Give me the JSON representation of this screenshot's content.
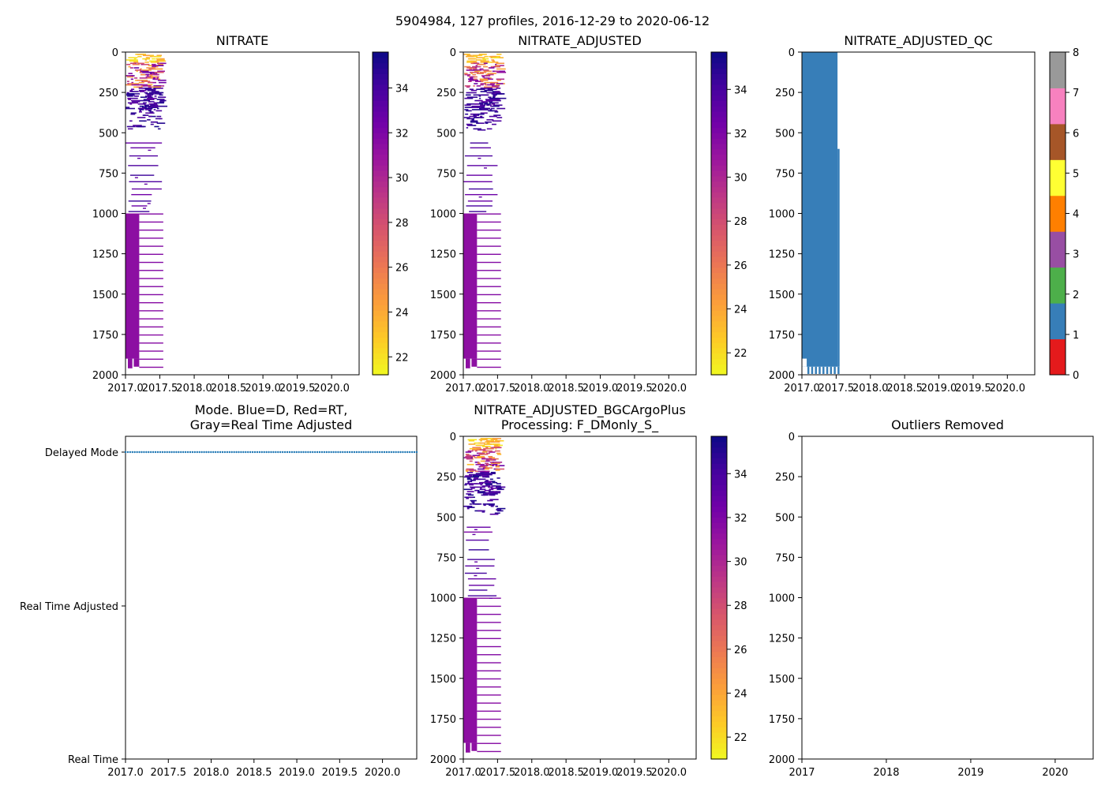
{
  "suptitle": "5904984, 127 profiles, 2016-12-29 to 2020-06-12",
  "colors": {
    "plasma": [
      "#f0f921",
      "#fdca26",
      "#fb9f3a",
      "#ed7953",
      "#d8576b",
      "#bd3786",
      "#9c179e",
      "#7201a8",
      "#46039f",
      "#0d0887"
    ],
    "qc": [
      "#e41a1c",
      "#377eb8",
      "#4daf4a",
      "#984ea3",
      "#ff7f00",
      "#ffff33",
      "#a65628",
      "#f781bf",
      "#999999"
    ],
    "mode_line": "#1f77b4"
  },
  "chart_data": [
    {
      "id": "nitrate",
      "type": "heatmap",
      "title": "NITRATE",
      "xlim": [
        2017.0,
        2020.4
      ],
      "ylim": [
        2000,
        0
      ],
      "x_ticks": [
        2017.0,
        2017.5,
        2018.0,
        2018.5,
        2019.0,
        2019.5,
        2020.0
      ],
      "x_tick_labels": [
        "2017.0",
        "2017.5",
        "2018.0",
        "2018.5",
        "2019.0",
        "2019.5",
        "2020.0"
      ],
      "y_ticks": [
        0,
        250,
        500,
        750,
        1000,
        1250,
        1500,
        1750,
        2000
      ],
      "y_tick_labels": [
        "0",
        "250",
        "500",
        "750",
        "1000",
        "1250",
        "1500",
        "1750",
        "2000"
      ],
      "data_x_range": [
        2017.0,
        2017.55
      ],
      "colorbar": {
        "clim": [
          21.2,
          35.6
        ],
        "ticks": [
          22,
          24,
          26,
          28,
          30,
          32,
          34
        ],
        "tick_labels": [
          "22",
          "24",
          "26",
          "28",
          "30",
          "32",
          "34"
        ]
      }
    },
    {
      "id": "nitrate_adjusted",
      "type": "heatmap",
      "title": "NITRATE_ADJUSTED",
      "xlim": [
        2017.0,
        2020.4
      ],
      "ylim": [
        2000,
        0
      ],
      "x_ticks": [
        2017.0,
        2017.5,
        2018.0,
        2018.5,
        2019.0,
        2019.5,
        2020.0
      ],
      "x_tick_labels": [
        "2017.0",
        "2017.5",
        "2018.0",
        "2018.5",
        "2019.0",
        "2019.5",
        "2020.0"
      ],
      "y_ticks": [
        0,
        250,
        500,
        750,
        1000,
        1250,
        1500,
        1750,
        2000
      ],
      "y_tick_labels": [
        "0",
        "250",
        "500",
        "750",
        "1000",
        "1250",
        "1500",
        "1750",
        "2000"
      ],
      "data_x_range": [
        2017.0,
        2017.55
      ],
      "colorbar": {
        "clim": [
          21.0,
          35.7
        ],
        "ticks": [
          22,
          24,
          26,
          28,
          30,
          32,
          34
        ],
        "tick_labels": [
          "22",
          "24",
          "26",
          "28",
          "30",
          "32",
          "34"
        ]
      }
    },
    {
      "id": "nitrate_adjusted_qc",
      "type": "heatmap",
      "title": "NITRATE_ADJUSTED_QC",
      "xlim": [
        2017.0,
        2020.4
      ],
      "ylim": [
        2000,
        0
      ],
      "x_ticks": [
        2017.0,
        2017.5,
        2018.0,
        2018.5,
        2019.0,
        2019.5,
        2020.0
      ],
      "x_tick_labels": [
        "2017.0",
        "2017.5",
        "2018.0",
        "2018.5",
        "2019.0",
        "2019.5",
        "2020.0"
      ],
      "y_ticks": [
        0,
        250,
        500,
        750,
        1000,
        1250,
        1500,
        1750,
        2000
      ],
      "y_tick_labels": [
        "0",
        "250",
        "500",
        "750",
        "1000",
        "1250",
        "1500",
        "1750",
        "2000"
      ],
      "qc_value_shown": 1,
      "data_x_range": [
        2017.0,
        2017.55
      ],
      "colorbar": {
        "clim": [
          0,
          8
        ],
        "ticks": [
          0,
          1,
          2,
          3,
          4,
          5,
          6,
          7,
          8
        ],
        "tick_labels": [
          "0",
          "1",
          "2",
          "3",
          "4",
          "5",
          "6",
          "7",
          "8"
        ]
      }
    },
    {
      "id": "mode",
      "type": "scatter",
      "title_lines": [
        "Mode. Blue=D, Red=RT,",
        "Gray=Real Time Adjusted"
      ],
      "xlim": [
        2017.0,
        2020.4
      ],
      "x_ticks": [
        2017.0,
        2017.5,
        2018.0,
        2018.5,
        2019.0,
        2019.5,
        2020.0
      ],
      "x_tick_labels": [
        "2017.0",
        "2017.5",
        "2018.0",
        "2018.5",
        "2019.0",
        "2019.5",
        "2020.0"
      ],
      "y_categories": [
        "Real Time",
        "Real Time Adjusted",
        "Delayed Mode"
      ],
      "points": {
        "category": "Delayed Mode",
        "x_start": 2017.0,
        "x_end": 2020.4,
        "count": 127
      }
    },
    {
      "id": "bgcargoplus",
      "type": "heatmap",
      "title_lines": [
        "NITRATE_ADJUSTED_BGCArgoPlus",
        "Processing: F_DMonly_S_"
      ],
      "xlim": [
        2017.0,
        2020.4
      ],
      "ylim": [
        2000,
        0
      ],
      "x_ticks": [
        2017.0,
        2017.5,
        2018.0,
        2018.5,
        2019.0,
        2019.5,
        2020.0
      ],
      "x_tick_labels": [
        "2017.0",
        "2017.5",
        "2018.0",
        "2018.5",
        "2019.0",
        "2019.5",
        "2020.0"
      ],
      "y_ticks": [
        0,
        250,
        500,
        750,
        1000,
        1250,
        1500,
        1750,
        2000
      ],
      "y_tick_labels": [
        "0",
        "250",
        "500",
        "750",
        "1000",
        "1250",
        "1500",
        "1750",
        "2000"
      ],
      "data_x_range": [
        2017.0,
        2017.55
      ],
      "colorbar": {
        "clim": [
          21.0,
          35.7
        ],
        "ticks": [
          22,
          24,
          26,
          28,
          30,
          32,
          34
        ],
        "tick_labels": [
          "22",
          "24",
          "26",
          "28",
          "30",
          "32",
          "34"
        ]
      }
    },
    {
      "id": "outliers",
      "type": "scatter",
      "title": "Outliers Removed",
      "xlim": [
        2017.0,
        2020.45
      ],
      "ylim": [
        2000,
        0
      ],
      "x_ticks": [
        2017,
        2018,
        2019,
        2020
      ],
      "x_tick_labels": [
        "2017",
        "2018",
        "2019",
        "2020"
      ],
      "y_ticks": [
        0,
        250,
        500,
        750,
        1000,
        1250,
        1500,
        1750,
        2000
      ],
      "y_tick_labels": [
        "0",
        "250",
        "500",
        "750",
        "1000",
        "1250",
        "1500",
        "1750",
        "2000"
      ],
      "points": []
    }
  ]
}
